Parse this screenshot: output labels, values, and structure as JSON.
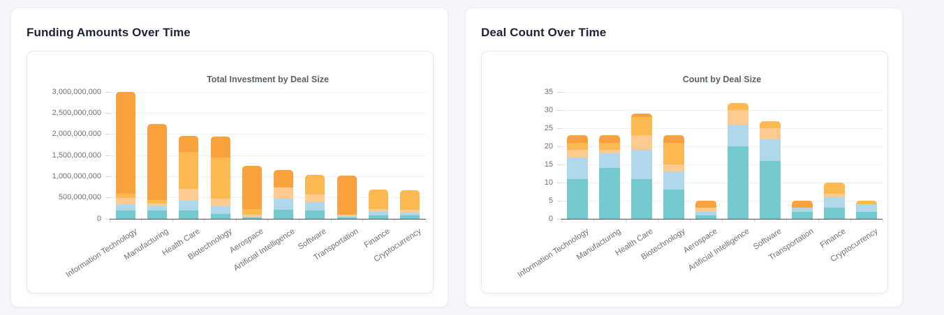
{
  "page_background": "#f5f6fa",
  "cards": [
    {
      "title": "Funding Amounts Over Time"
    },
    {
      "title": "Deal Count Over Time"
    }
  ],
  "chart_data": [
    {
      "type": "bar",
      "stacked": true,
      "title": "Total Investment by Deal Size",
      "xlabel": "",
      "ylabel": "",
      "grid": true,
      "legend": false,
      "ylim": [
        0,
        3000000000
      ],
      "ytick_labels": [
        "0",
        "500,000,000",
        "1,000,000,000",
        "1,500,000,000",
        "2,000,000,000",
        "2,500,000,000",
        "3,000,000,000"
      ],
      "categories": [
        "Information Technology",
        "Manufacturing",
        "Health Care",
        "Biotechnology",
        "Aerospace",
        "Artificial Intelligence",
        "Software",
        "Transportation",
        "Finance",
        "Cryptocurrency"
      ],
      "series": [
        {
          "name": "deal-size-teal",
          "color": "#74C9CF",
          "values": [
            190000000,
            190000000,
            190000000,
            110000000,
            25000000,
            220000000,
            200000000,
            30000000,
            85000000,
            90000000
          ]
        },
        {
          "name": "deal-size-light-blue",
          "color": "#AFD8EC",
          "values": [
            160000000,
            130000000,
            240000000,
            180000000,
            30000000,
            250000000,
            190000000,
            40000000,
            90000000,
            55000000
          ]
        },
        {
          "name": "deal-size-pale-orange",
          "color": "#FDCB8F",
          "values": [
            140000000,
            45000000,
            275000000,
            195000000,
            45000000,
            275000000,
            195000000,
            30000000,
            55000000,
            75000000
          ]
        },
        {
          "name": "deal-size-amber",
          "color": "#FCB952",
          "values": [
            110000000,
            85000000,
            880000000,
            970000000,
            130000000,
            0,
            455000000,
            0,
            470000000,
            460000000
          ]
        },
        {
          "name": "deal-size-orange",
          "color": "#F9A23D",
          "values": [
            2400000000,
            1800000000,
            375000000,
            495000000,
            1020000000,
            415000000,
            0,
            930000000,
            0,
            0
          ]
        }
      ]
    },
    {
      "type": "bar",
      "stacked": true,
      "title": "Count by Deal Size",
      "xlabel": "",
      "ylabel": "",
      "grid": true,
      "legend": false,
      "ylim": [
        0,
        35
      ],
      "ytick_labels": [
        "0",
        "5",
        "10",
        "15",
        "20",
        "25",
        "30",
        "35"
      ],
      "categories": [
        "Information Technology",
        "Manufacturing",
        "Health Care",
        "Biotechnology",
        "Aerospace",
        "Artificial Intelligence",
        "Software",
        "Transportation",
        "Finance",
        "Cryptocurrency"
      ],
      "series": [
        {
          "name": "deal-size-teal",
          "color": "#74C9CF",
          "values": [
            11,
            14,
            11,
            8,
            1,
            20,
            16,
            2,
            3,
            2
          ]
        },
        {
          "name": "deal-size-light-blue",
          "color": "#AFD8EC",
          "values": [
            6,
            4,
            8,
            5,
            1,
            6,
            6,
            1,
            3,
            2
          ]
        },
        {
          "name": "deal-size-pale-orange",
          "color": "#FDCB8F",
          "values": [
            2,
            1,
            4,
            2,
            1,
            4,
            3,
            0,
            1,
            0
          ]
        },
        {
          "name": "deal-size-amber",
          "color": "#FCB952",
          "values": [
            2,
            2,
            5,
            6,
            0,
            2,
            2,
            0,
            3,
            1
          ]
        },
        {
          "name": "deal-size-orange",
          "color": "#F9A23D",
          "values": [
            2,
            2,
            1,
            2,
            2,
            0,
            0,
            2,
            0,
            0
          ]
        }
      ]
    }
  ]
}
